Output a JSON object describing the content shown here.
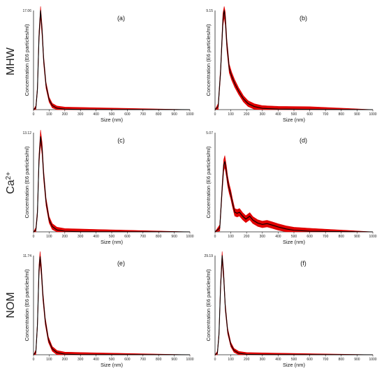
{
  "row_labels": {
    "r0": "MHW",
    "r1_base": "Ca",
    "r1_sup": "2+",
    "r2": "NOM"
  },
  "colors": {
    "mean_line": "#000000",
    "error_band": "#e00000",
    "axis": "#222222"
  },
  "chart_data": [
    {
      "type": "line",
      "panel": "(a)",
      "xlabel": "Size (nm)",
      "ylabel": "Concentration (E6 particles/ml)",
      "ymax_label": "17.06",
      "xlim": [
        0,
        1000
      ],
      "ylim": [
        0,
        17.06
      ],
      "xticks": [
        "0",
        "100",
        "200",
        "300",
        "400",
        "500",
        "600",
        "700",
        "800",
        "900",
        "1000"
      ],
      "series": [
        {
          "values": [
            [
              0,
              0
            ],
            [
              15,
              0.3
            ],
            [
              25,
              3.5
            ],
            [
              35,
              12.5
            ],
            [
              45,
              17.06
            ],
            [
              55,
              13.5
            ],
            [
              65,
              8.5
            ],
            [
              80,
              4.2
            ],
            [
              100,
              1.7
            ],
            [
              120,
              0.7
            ],
            [
              150,
              0.25
            ],
            [
              200,
              0.08
            ],
            [
              300,
              0.02
            ],
            [
              1000,
              0
            ]
          ]
        }
      ],
      "error_band": 0.35
    },
    {
      "type": "line",
      "panel": "(b)",
      "xlabel": "Size (nm)",
      "ylabel": "Concentration (E6 particles/ml)",
      "ymax_label": "9.15",
      "xlim": [
        0,
        1000
      ],
      "ylim": [
        0,
        9.15
      ],
      "xticks": [
        "0",
        "100",
        "200",
        "300",
        "400",
        "500",
        "600",
        "700",
        "800",
        "900",
        "1000"
      ],
      "series": [
        {
          "values": [
            [
              0,
              0
            ],
            [
              20,
              0.3
            ],
            [
              35,
              3.5
            ],
            [
              50,
              8.3
            ],
            [
              58,
              9.15
            ],
            [
              65,
              8.4
            ],
            [
              75,
              6.0
            ],
            [
              90,
              3.8
            ],
            [
              105,
              3.1
            ],
            [
              125,
              2.4
            ],
            [
              150,
              1.7
            ],
            [
              180,
              1.0
            ],
            [
              210,
              0.55
            ],
            [
              250,
              0.28
            ],
            [
              300,
              0.12
            ],
            [
              400,
              0.05
            ],
            [
              600,
              0.02
            ],
            [
              1000,
              0
            ]
          ]
        }
      ],
      "error_band": 0.45
    },
    {
      "type": "line",
      "panel": "(c)",
      "xlabel": "Size (nm)",
      "ylabel": "Concentration (E6 particles/ml)",
      "ymax_label": "13.12",
      "xlim": [
        0,
        1000
      ],
      "ylim": [
        0,
        13.12
      ],
      "xticks": [
        "0",
        "100",
        "200",
        "300",
        "400",
        "500",
        "600",
        "700",
        "800",
        "900",
        "1000"
      ],
      "series": [
        {
          "values": [
            [
              0,
              0
            ],
            [
              15,
              0.2
            ],
            [
              25,
              2.5
            ],
            [
              35,
              9.5
            ],
            [
              45,
              12.6
            ],
            [
              55,
              11.0
            ],
            [
              65,
              7.5
            ],
            [
              80,
              4.0
            ],
            [
              100,
              1.6
            ],
            [
              120,
              0.7
            ],
            [
              150,
              0.25
            ],
            [
              200,
              0.08
            ],
            [
              300,
              0.02
            ],
            [
              1000,
              0
            ]
          ]
        }
      ],
      "error_band": 0.45
    },
    {
      "type": "line",
      "panel": "(d)",
      "xlabel": "Size (nm)",
      "ylabel": "Concentration (E6 particles/ml)",
      "ymax_label": "5.07",
      "xlim": [
        0,
        1000
      ],
      "ylim": [
        0,
        5.07
      ],
      "xticks": [
        "0",
        "100",
        "200",
        "300",
        "400",
        "500",
        "600",
        "700",
        "800",
        "900",
        "1000"
      ],
      "series": [
        {
          "values": [
            [
              0,
              0
            ],
            [
              30,
              0.2
            ],
            [
              45,
              2.2
            ],
            [
              55,
              3.4
            ],
            [
              62,
              3.6
            ],
            [
              72,
              3.1
            ],
            [
              80,
              2.6
            ],
            [
              90,
              2.2
            ],
            [
              100,
              1.9
            ],
            [
              110,
              1.5
            ],
            [
              125,
              1.0
            ],
            [
              140,
              0.95
            ],
            [
              155,
              1.0
            ],
            [
              175,
              0.8
            ],
            [
              195,
              0.65
            ],
            [
              220,
              0.8
            ],
            [
              240,
              0.6
            ],
            [
              270,
              0.45
            ],
            [
              300,
              0.38
            ],
            [
              330,
              0.42
            ],
            [
              360,
              0.35
            ],
            [
              400,
              0.25
            ],
            [
              450,
              0.15
            ],
            [
              500,
              0.08
            ],
            [
              600,
              0.03
            ],
            [
              1000,
              0
            ]
          ]
        }
      ],
      "error_band": 0.5
    },
    {
      "type": "line",
      "panel": "(e)",
      "xlabel": "Size (nm)",
      "ylabel": "Concentration (E6 particles/ml)",
      "ymax_label": "11.74",
      "xlim": [
        0,
        1000
      ],
      "ylim": [
        0,
        11.74
      ],
      "xticks": [
        "0",
        "100",
        "200",
        "300",
        "400",
        "500",
        "600",
        "700",
        "800",
        "900",
        "1000"
      ],
      "series": [
        {
          "values": [
            [
              0,
              0
            ],
            [
              15,
              0.3
            ],
            [
              25,
              3.5
            ],
            [
              35,
              10.0
            ],
            [
              42,
              11.6
            ],
            [
              50,
              10.0
            ],
            [
              60,
              7.0
            ],
            [
              75,
              4.0
            ],
            [
              95,
              1.8
            ],
            [
              120,
              0.7
            ],
            [
              150,
              0.25
            ],
            [
              200,
              0.07
            ],
            [
              300,
              0.02
            ],
            [
              1000,
              0
            ]
          ]
        }
      ],
      "error_band": 0.35
    },
    {
      "type": "line",
      "panel": "(f)",
      "xlabel": "Size (nm)",
      "ylabel": "Concentration (E6 particles/ml)",
      "ymax_label": "29.19",
      "xlim": [
        0,
        1000
      ],
      "ylim": [
        0,
        29.19
      ],
      "xticks": [
        "0",
        "100",
        "200",
        "300",
        "400",
        "500",
        "600",
        "700",
        "800",
        "900",
        "1000"
      ],
      "series": [
        {
          "values": [
            [
              0,
              0
            ],
            [
              15,
              0.5
            ],
            [
              25,
              6.0
            ],
            [
              35,
              20.0
            ],
            [
              45,
              29.19
            ],
            [
              55,
              23.0
            ],
            [
              65,
              14.0
            ],
            [
              80,
              7.0
            ],
            [
              100,
              3.0
            ],
            [
              120,
              1.3
            ],
            [
              150,
              0.45
            ],
            [
              200,
              0.12
            ],
            [
              300,
              0.03
            ],
            [
              1000,
              0
            ]
          ]
        }
      ],
      "error_band": 0.3
    }
  ]
}
